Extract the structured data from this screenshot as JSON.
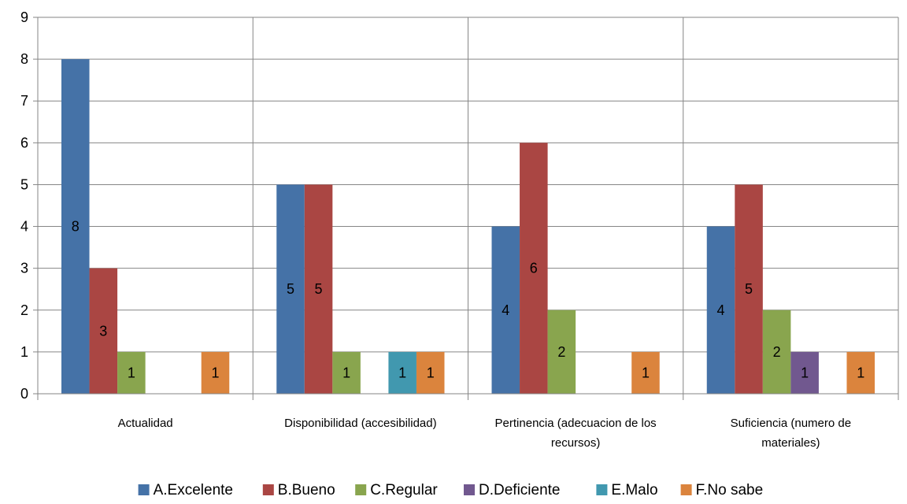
{
  "chart_data": {
    "type": "bar",
    "categories": [
      "Actualidad",
      "Disponibilidad (accesibilidad)",
      "Pertinencia (adecuacion de los recursos)",
      "Suficiencia (numero de materiales)"
    ],
    "series": [
      {
        "name": "A.Excelente",
        "color": "#4572A7",
        "values": [
          8,
          5,
          4,
          4
        ]
      },
      {
        "name": "B.Bueno",
        "color": "#AA4643",
        "values": [
          3,
          5,
          6,
          5
        ]
      },
      {
        "name": "C.Regular",
        "color": "#89A54E",
        "values": [
          1,
          1,
          2,
          2
        ]
      },
      {
        "name": "D.Deficiente",
        "color": "#71588F",
        "values": [
          0,
          0,
          0,
          1
        ]
      },
      {
        "name": "E.Malo",
        "color": "#4198AF",
        "values": [
          0,
          1,
          0,
          0
        ]
      },
      {
        "name": "F.No sabe",
        "color": "#DB843D",
        "values": [
          1,
          1,
          1,
          1
        ]
      }
    ],
    "ylim": [
      0,
      9
    ],
    "yticks": [
      0,
      1,
      2,
      3,
      4,
      5,
      6,
      7,
      8,
      9
    ],
    "grid": true,
    "data_labels": true,
    "legend_position": "bottom",
    "title": "",
    "xlabel": "",
    "ylabel": ""
  }
}
